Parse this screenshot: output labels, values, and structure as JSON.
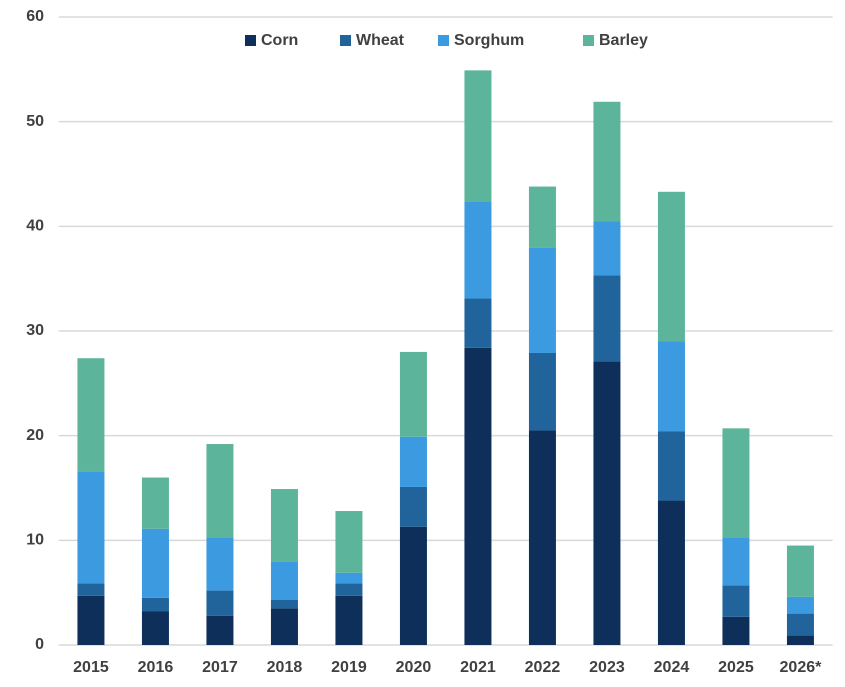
{
  "chart_data": {
    "type": "stacked_bar",
    "categories": [
      "2015",
      "2016",
      "2017",
      "2018",
      "2019",
      "2020",
      "2021",
      "2022",
      "2023",
      "2024",
      "2025",
      "2026*"
    ],
    "series": [
      {
        "name": "Corn",
        "color": "#0d2f5a",
        "values": [
          4.7,
          3.2,
          2.8,
          3.5,
          4.7,
          11.3,
          28.4,
          20.5,
          27.1,
          13.8,
          2.7,
          0.9
        ]
      },
      {
        "name": "Wheat",
        "color": "#20649b",
        "values": [
          1.2,
          1.3,
          2.4,
          0.8,
          1.2,
          3.8,
          4.7,
          7.4,
          8.2,
          6.6,
          3.0,
          2.1
        ]
      },
      {
        "name": "Sorghum",
        "color": "#3c9ae0",
        "values": [
          10.7,
          6.6,
          5.1,
          3.7,
          1.0,
          4.8,
          9.3,
          10.1,
          5.2,
          8.6,
          4.6,
          1.6
        ]
      },
      {
        "name": "Barley",
        "color": "#5cb49a",
        "values": [
          10.8,
          4.9,
          8.9,
          6.9,
          5.9,
          8.1,
          12.5,
          5.8,
          11.4,
          14.3,
          10.4,
          4.9
        ]
      }
    ],
    "ylim": [
      0,
      60
    ],
    "yticks": [
      0,
      10,
      20,
      30,
      40,
      50,
      60
    ],
    "grid": true,
    "legend": "top"
  }
}
